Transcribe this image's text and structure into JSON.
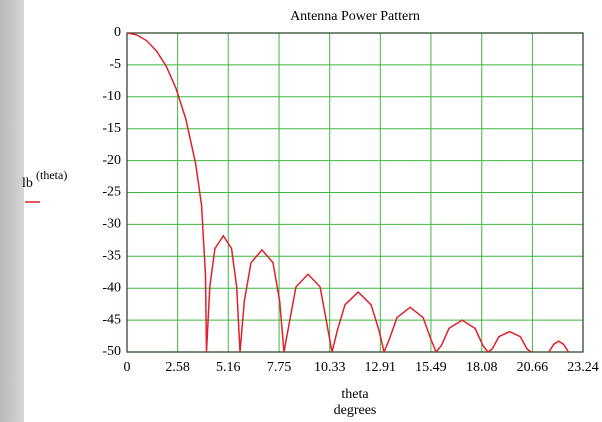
{
  "chart_data": {
    "type": "line",
    "title": "Antenna Power Pattern",
    "y_label_main": "lb",
    "y_label_arg": "(theta)",
    "x_label": "theta",
    "x_label_unit": "degrees",
    "x": [
      0,
      0.5,
      1,
      1.5,
      2,
      2.5,
      3,
      3.5,
      3.8,
      4.0,
      4.05,
      4.22,
      4.48,
      4.91,
      5.33,
      5.59,
      5.76,
      5.98,
      6.32,
      6.88,
      7.44,
      7.78,
      8.0,
      8.25,
      8.61,
      9.23,
      9.84,
      10.2,
      10.45,
      10.72,
      11.11,
      11.78,
      12.44,
      12.84,
      13.1,
      13.37,
      13.76,
      14.43,
      15.09,
      15.49,
      15.75,
      16.02,
      16.41,
      17.08,
      17.74,
      18.14,
      18.4,
      18.62,
      18.95,
      19.5,
      20.05,
      20.38,
      20.6,
      21.0,
      21.5,
      21.75,
      22.0,
      22.25,
      22.5
    ],
    "series": [
      {
        "name": "lb(theta)",
        "color": "#e0202a",
        "values": [
          0,
          -0.3,
          -1.2,
          -2.8,
          -5.2,
          -8.7,
          -13.5,
          -20.5,
          -27,
          -38,
          -50,
          -39.8,
          -33.8,
          -31.8,
          -33.8,
          -39.8,
          -50,
          -42,
          -36,
          -34,
          -36,
          -42,
          -50,
          -45.8,
          -39.8,
          -37.8,
          -39.8,
          -45.8,
          -50,
          -46.6,
          -42.6,
          -40.6,
          -42.6,
          -46.6,
          -50,
          -48,
          -44.6,
          -43,
          -44.6,
          -48,
          -50,
          -49,
          -46.3,
          -45,
          -46.3,
          -49,
          -50,
          -49.5,
          -47.6,
          -46.8,
          -47.6,
          -49.5,
          -50,
          null,
          -50,
          -48.8,
          -48.3,
          -48.8,
          -50
        ]
      }
    ],
    "xlim": [
      0,
      23.24
    ],
    "ylim": [
      -50,
      0
    ],
    "xticks": [
      0,
      2.58,
      5.16,
      7.75,
      10.33,
      12.91,
      15.49,
      18.08,
      20.66,
      23.24
    ],
    "yticks": [
      0,
      -5,
      -10,
      -15,
      -20,
      -25,
      -30,
      -35,
      -40,
      -45,
      -50
    ],
    "grid": true,
    "grid_color": "#3fb83f"
  }
}
